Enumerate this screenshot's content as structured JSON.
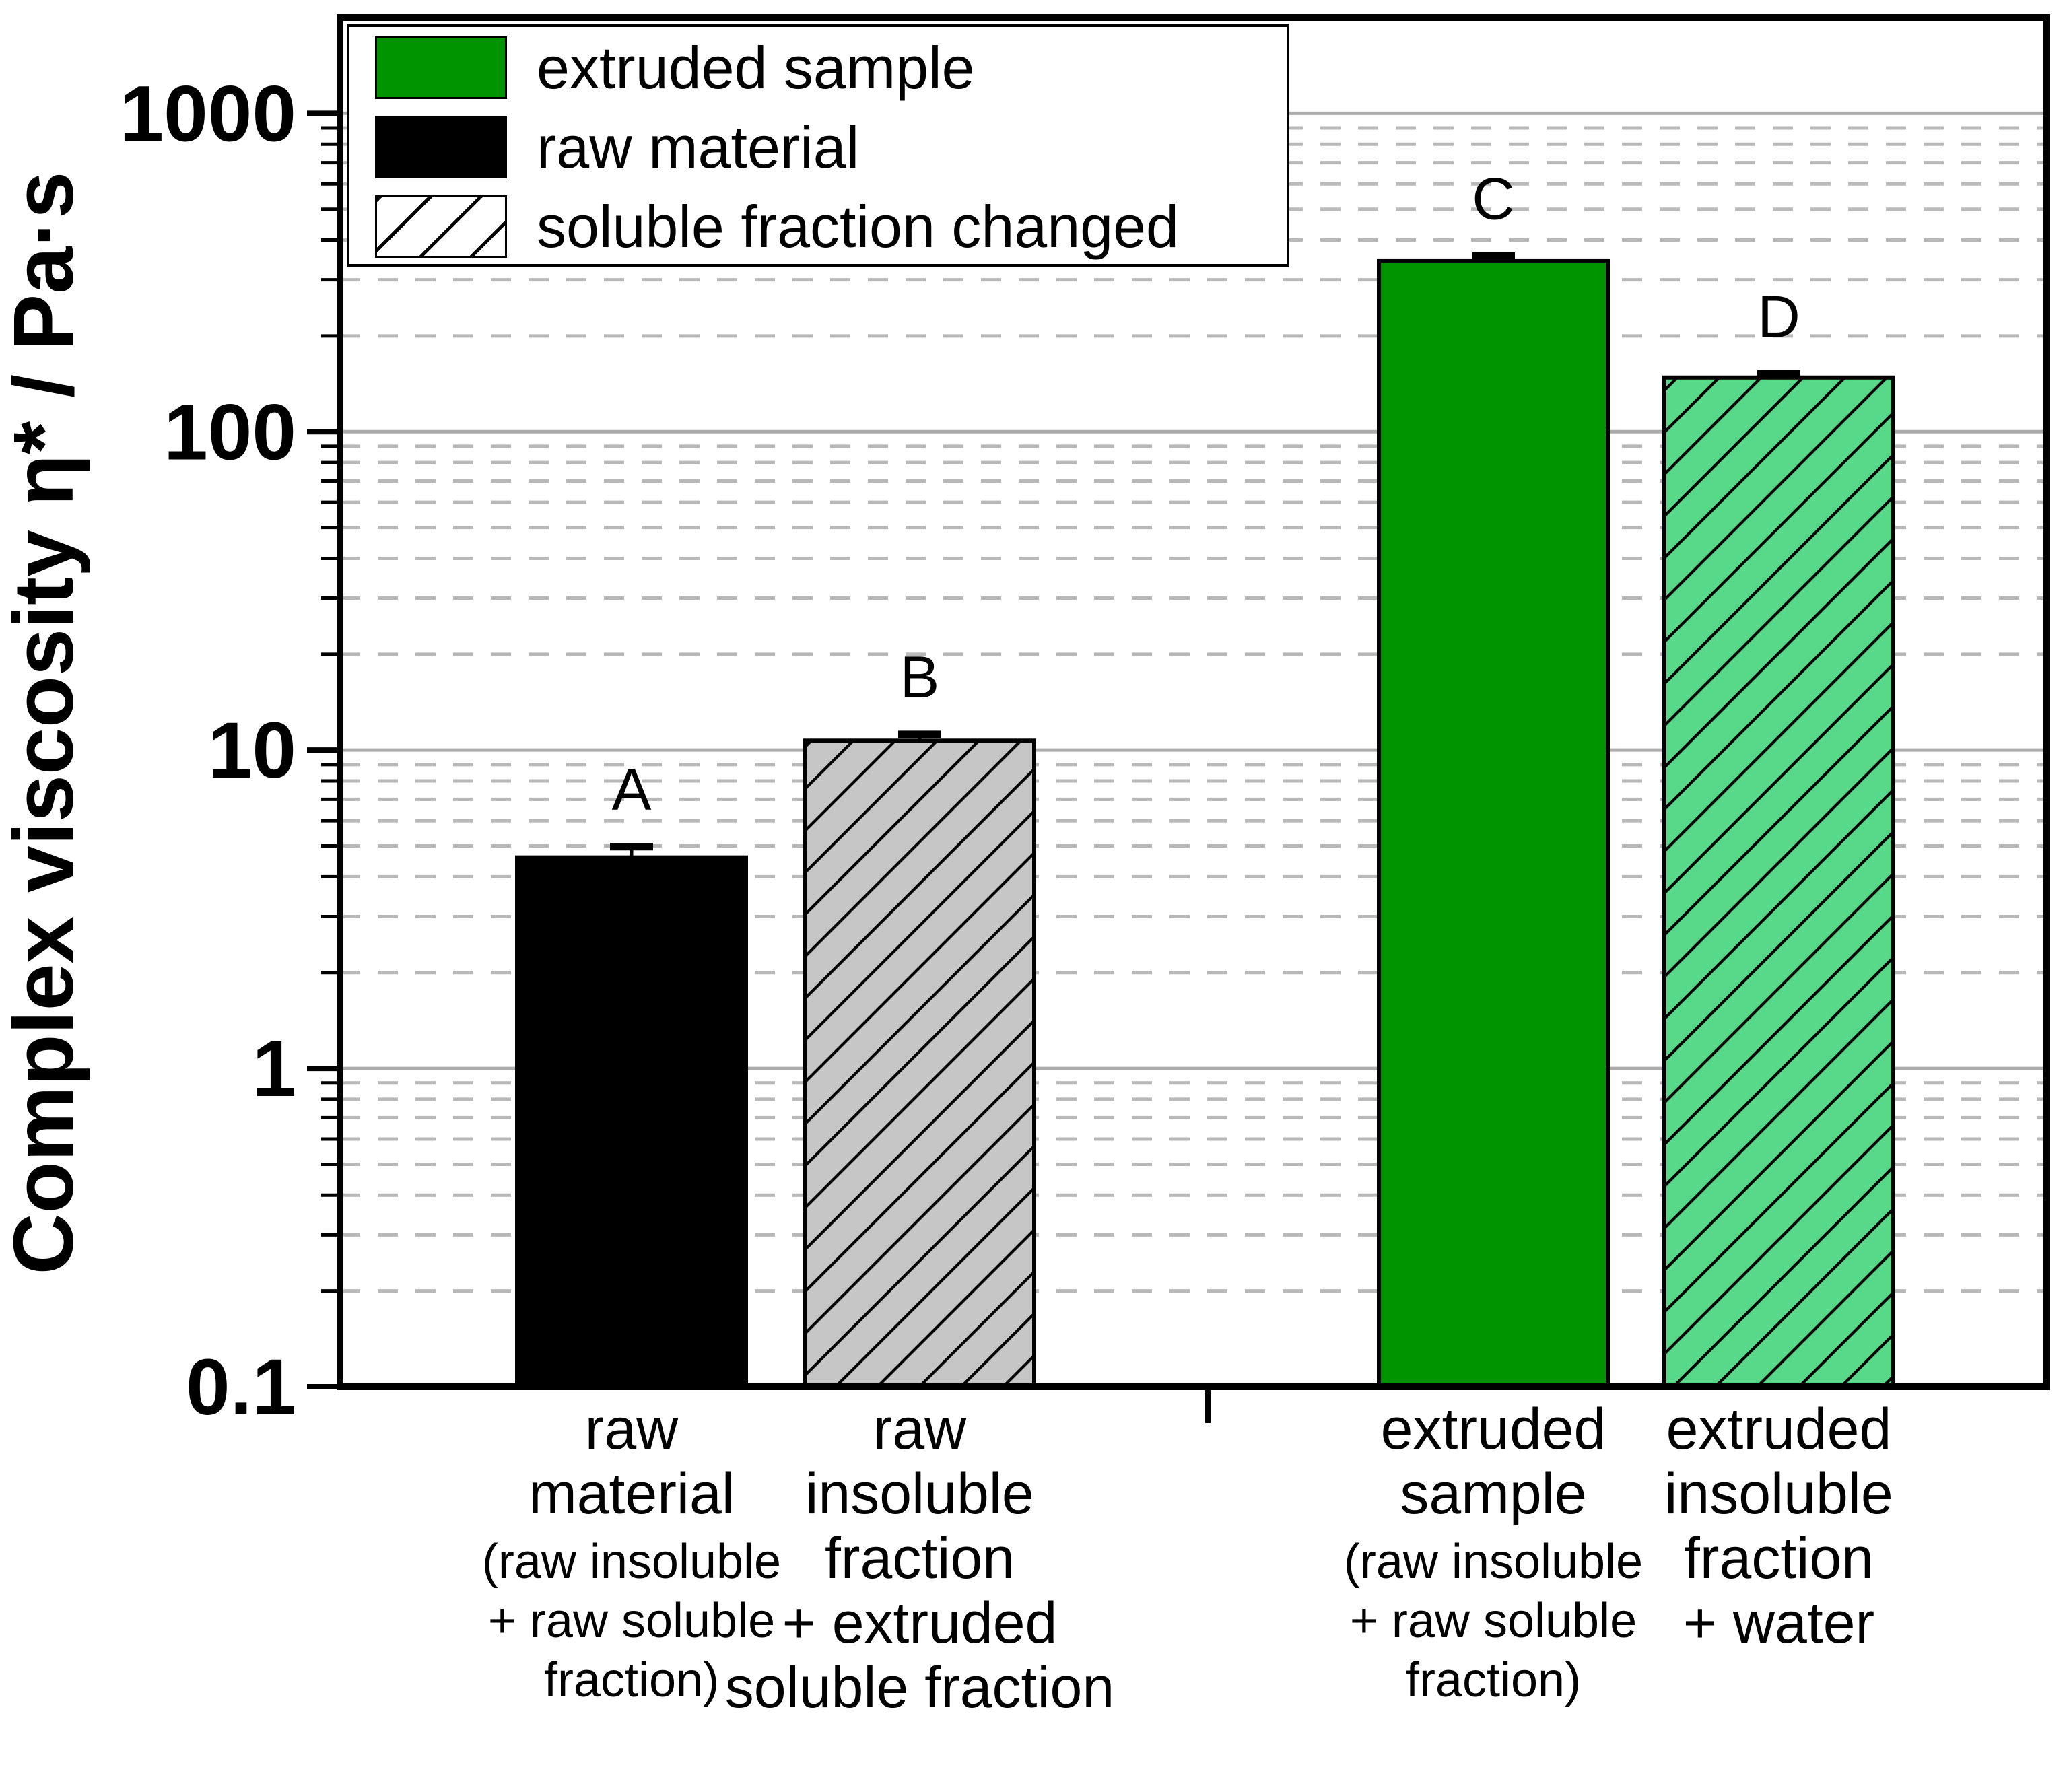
{
  "figure": {
    "background": "#ffffff",
    "frame_color": "#000000",
    "grid_major_color": "#ababab",
    "grid_minor_color": "#b8b8b8"
  },
  "chart_data": {
    "type": "bar",
    "title": "",
    "xlabel": "",
    "ylabel": "Complex viscosity η* / Pa·s",
    "yscale": "log",
    "ylim": [
      0.1,
      2000
    ],
    "grid": {
      "major": "solid",
      "minor": "dashed",
      "minor_multipliers": [
        2,
        3,
        4,
        5,
        6,
        7,
        8,
        9
      ],
      "legend_position": "top-left"
    },
    "y_ticks": [
      {
        "value": 1000,
        "label": "1000"
      },
      {
        "value": 100,
        "label": "100"
      },
      {
        "value": 10,
        "label": "10"
      },
      {
        "value": 1,
        "label": "1"
      },
      {
        "value": 0.1,
        "label": "0.1"
      }
    ],
    "legend": {
      "items": [
        {
          "label": "extruded sample",
          "fill": "#009400",
          "hatch": false
        },
        {
          "label": "raw material",
          "fill": "#000000",
          "hatch": false
        },
        {
          "label": "soluble fraction changed",
          "fill": "#ffffff",
          "hatch": true
        }
      ]
    },
    "bars": [
      {
        "letter": "A",
        "value": 4.6,
        "error_plus": 0.37,
        "fill": "#000000",
        "hatch": false,
        "category_lines": [
          {
            "text": "raw",
            "small": false
          },
          {
            "text": "material",
            "small": false
          },
          {
            "text": "(raw insoluble",
            "small": true
          },
          {
            "text": "+ raw soluble",
            "small": true
          },
          {
            "text": "fraction)",
            "small": true
          }
        ]
      },
      {
        "letter": "B",
        "value": 10.7,
        "error_plus": 0.5,
        "fill": "#c6c6c6",
        "hatch": true,
        "category_lines": [
          {
            "text": "raw",
            "small": false
          },
          {
            "text": "insoluble",
            "small": false
          },
          {
            "text": "fraction",
            "small": false
          },
          {
            "text": "+ extruded",
            "small": false
          },
          {
            "text": "soluble fraction",
            "small": false
          }
        ]
      },
      {
        "letter": "C",
        "value": 345,
        "error_plus": 11,
        "fill": "#009400",
        "hatch": false,
        "category_lines": [
          {
            "text": "extruded",
            "small": false
          },
          {
            "text": "sample",
            "small": false
          },
          {
            "text": "(raw insoluble",
            "small": true
          },
          {
            "text": "+ raw soluble",
            "small": true
          },
          {
            "text": "fraction)",
            "small": true
          }
        ]
      },
      {
        "letter": "D",
        "value": 148,
        "error_plus": 4,
        "fill": "#57d989",
        "hatch": true,
        "category_lines": [
          {
            "text": "extruded",
            "small": false
          },
          {
            "text": "insoluble",
            "small": false
          },
          {
            "text": "fraction",
            "small": false
          },
          {
            "text": "+ water",
            "small": false
          }
        ]
      }
    ]
  }
}
